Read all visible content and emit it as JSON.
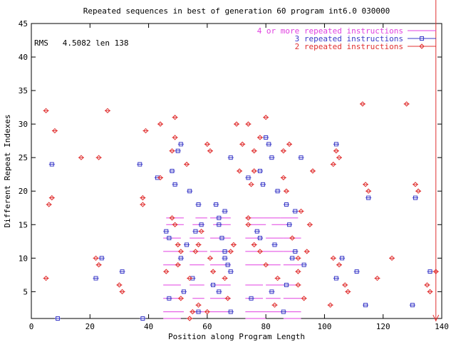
{
  "chart_data": {
    "type": "scatter",
    "title": "Repeated sequences in best of generation  60 program int6.0 030000",
    "xlabel": "Position along Program Length",
    "ylabel": "Different Repeat Indexes",
    "xlim": [
      0,
      140
    ],
    "ylim": [
      1,
      45
    ],
    "xticks": [
      0,
      20,
      40,
      60,
      80,
      100,
      120,
      140
    ],
    "yticks": [
      5,
      10,
      15,
      20,
      25,
      30,
      35,
      40,
      45
    ],
    "grid": false,
    "legend_position": "top-right",
    "annotation": "RMS   4.5082 len 138",
    "program_length_marker": 138,
    "series": [
      {
        "name": "4 or more repeated instructions",
        "color": "#e040e0",
        "style": "segments",
        "segments": [
          [
            46,
            52,
            16
          ],
          [
            56,
            60,
            16
          ],
          [
            46,
            52,
            15
          ],
          [
            55,
            59,
            15
          ],
          [
            45,
            51,
            13
          ],
          [
            54,
            59,
            13
          ],
          [
            45,
            51,
            11
          ],
          [
            54,
            60,
            11
          ],
          [
            45,
            51,
            9
          ],
          [
            54,
            59,
            9
          ],
          [
            45,
            51,
            6
          ],
          [
            54,
            59,
            6
          ],
          [
            45,
            51,
            4
          ],
          [
            55,
            59,
            4
          ],
          [
            45,
            52,
            2
          ],
          [
            55,
            59,
            2
          ],
          [
            45,
            51,
            1
          ],
          [
            61,
            68,
            16
          ],
          [
            62,
            68,
            15
          ],
          [
            61,
            68,
            13
          ],
          [
            61,
            68,
            11
          ],
          [
            61,
            68,
            9
          ],
          [
            61,
            68,
            6
          ],
          [
            61,
            68,
            4
          ],
          [
            61,
            68,
            2
          ],
          [
            73,
            79,
            16
          ],
          [
            74,
            80,
            15
          ],
          [
            73,
            79,
            13
          ],
          [
            73,
            79,
            11
          ],
          [
            73,
            79,
            9
          ],
          [
            73,
            79,
            6
          ],
          [
            73,
            79,
            4
          ],
          [
            73,
            80,
            2
          ],
          [
            73,
            80,
            1
          ],
          [
            79,
            85,
            16
          ],
          [
            82,
            88,
            15
          ],
          [
            80,
            86,
            13
          ],
          [
            79,
            86,
            11
          ],
          [
            80,
            85,
            9
          ],
          [
            80,
            86,
            6
          ],
          [
            80,
            85,
            4
          ],
          [
            80,
            86,
            2
          ],
          [
            85,
            91,
            16
          ],
          [
            86,
            92,
            13
          ],
          [
            86,
            91,
            11
          ],
          [
            86,
            92,
            9
          ],
          [
            86,
            92,
            6
          ],
          [
            86,
            92,
            4
          ],
          [
            86,
            92,
            2
          ],
          [
            86,
            92,
            1
          ]
        ]
      },
      {
        "name": "3 repeated instructions",
        "color": "#3a3ac8",
        "style": "box",
        "points": [
          [
            7,
            24
          ],
          [
            9,
            1
          ],
          [
            37,
            24
          ],
          [
            38,
            1
          ],
          [
            24,
            10
          ],
          [
            22,
            7
          ],
          [
            31,
            8
          ],
          [
            43,
            22
          ],
          [
            48,
            23
          ],
          [
            49,
            21
          ],
          [
            50,
            26
          ],
          [
            51,
            27
          ],
          [
            54,
            20
          ],
          [
            57,
            18
          ],
          [
            58,
            15
          ],
          [
            56,
            14
          ],
          [
            46,
            14
          ],
          [
            47,
            13
          ],
          [
            53,
            12
          ],
          [
            51,
            10
          ],
          [
            55,
            7
          ],
          [
            52,
            5
          ],
          [
            47,
            4
          ],
          [
            57,
            2
          ],
          [
            63,
            18
          ],
          [
            64,
            16
          ],
          [
            64,
            15
          ],
          [
            65,
            13
          ],
          [
            66,
            11
          ],
          [
            66,
            10
          ],
          [
            67,
            9
          ],
          [
            68,
            8
          ],
          [
            62,
            6
          ],
          [
            64,
            5
          ],
          [
            68,
            2
          ],
          [
            66,
            17
          ],
          [
            68,
            25
          ],
          [
            74,
            22
          ],
          [
            78,
            23
          ],
          [
            79,
            21
          ],
          [
            80,
            28
          ],
          [
            81,
            27
          ],
          [
            82,
            25
          ],
          [
            84,
            20
          ],
          [
            87,
            18
          ],
          [
            90,
            17
          ],
          [
            88,
            15
          ],
          [
            77,
            14
          ],
          [
            78,
            13
          ],
          [
            83,
            12
          ],
          [
            90,
            11
          ],
          [
            89,
            10
          ],
          [
            93,
            9
          ],
          [
            87,
            6
          ],
          [
            82,
            5
          ],
          [
            75,
            4
          ],
          [
            86,
            2
          ],
          [
            92,
            25
          ],
          [
            104,
            27
          ],
          [
            106,
            10
          ],
          [
            104,
            7
          ],
          [
            111,
            8
          ],
          [
            115,
            19
          ],
          [
            114,
            3
          ],
          [
            131,
            19
          ],
          [
            130,
            3
          ],
          [
            136,
            8
          ]
        ]
      },
      {
        "name": "2 repeated instructions",
        "color": "#e03030",
        "style": "diamond",
        "points": [
          [
            5,
            32
          ],
          [
            8,
            29
          ],
          [
            7,
            19
          ],
          [
            6,
            18
          ],
          [
            5,
            7
          ],
          [
            17,
            25
          ],
          [
            23,
            25
          ],
          [
            26,
            32
          ],
          [
            23,
            9
          ],
          [
            22,
            10
          ],
          [
            30,
            6
          ],
          [
            31,
            5
          ],
          [
            38,
            19
          ],
          [
            38,
            18
          ],
          [
            39,
            29
          ],
          [
            44,
            30
          ],
          [
            44,
            22
          ],
          [
            49,
            31
          ],
          [
            49,
            28
          ],
          [
            48,
            26
          ],
          [
            53,
            24
          ],
          [
            48,
            16
          ],
          [
            49,
            15
          ],
          [
            50,
            12
          ],
          [
            51,
            11
          ],
          [
            50,
            9
          ],
          [
            46,
            8
          ],
          [
            54,
            7
          ],
          [
            51,
            4
          ],
          [
            55,
            2
          ],
          [
            54,
            1
          ],
          [
            60,
            27
          ],
          [
            61,
            26
          ],
          [
            58,
            14
          ],
          [
            57,
            12
          ],
          [
            56,
            11
          ],
          [
            61,
            10
          ],
          [
            62,
            8
          ],
          [
            57,
            3
          ],
          [
            60,
            2
          ],
          [
            70,
            30
          ],
          [
            72,
            27
          ],
          [
            69,
            12
          ],
          [
            68,
            11
          ],
          [
            66,
            7
          ],
          [
            67,
            4
          ],
          [
            71,
            23
          ],
          [
            74,
            30
          ],
          [
            76,
            23
          ],
          [
            76,
            26
          ],
          [
            80,
            31
          ],
          [
            78,
            28
          ],
          [
            75,
            21
          ],
          [
            74,
            16
          ],
          [
            74,
            15
          ],
          [
            76,
            12
          ],
          [
            78,
            11
          ],
          [
            80,
            9
          ],
          [
            86,
            26
          ],
          [
            88,
            27
          ],
          [
            86,
            22
          ],
          [
            87,
            20
          ],
          [
            92,
            17
          ],
          [
            89,
            13
          ],
          [
            91,
            10
          ],
          [
            91,
            8
          ],
          [
            84,
            7
          ],
          [
            91,
            6
          ],
          [
            83,
            3
          ],
          [
            93,
            4
          ],
          [
            94,
            11
          ],
          [
            95,
            15
          ],
          [
            96,
            23
          ],
          [
            104,
            26
          ],
          [
            103,
            24
          ],
          [
            105,
            25
          ],
          [
            103,
            10
          ],
          [
            105,
            9
          ],
          [
            102,
            3
          ],
          [
            108,
            5
          ],
          [
            107,
            6
          ],
          [
            113,
            33
          ],
          [
            114,
            21
          ],
          [
            115,
            20
          ],
          [
            118,
            7
          ],
          [
            123,
            10
          ],
          [
            128,
            33
          ],
          [
            131,
            21
          ],
          [
            132,
            20
          ],
          [
            135,
            6
          ],
          [
            136,
            5
          ],
          [
            138,
            8
          ]
        ]
      }
    ]
  }
}
